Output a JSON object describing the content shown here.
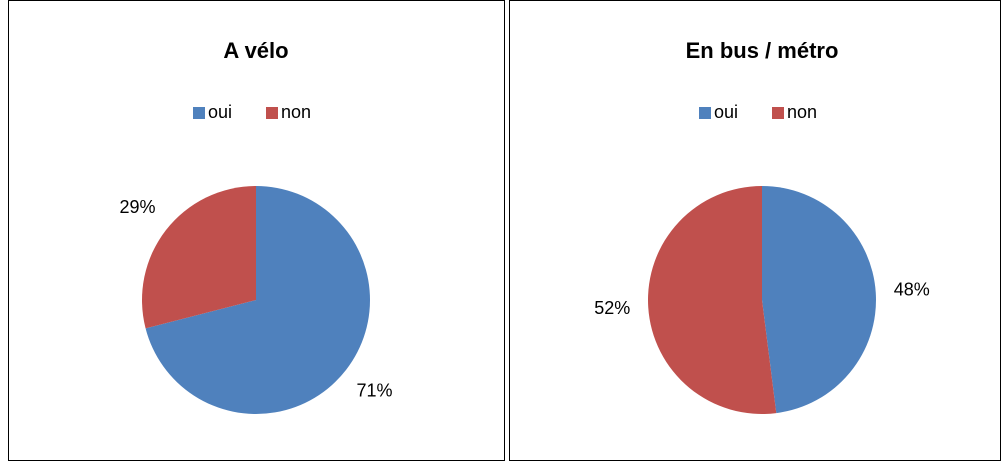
{
  "chart_data": [
    {
      "type": "pie",
      "title": "A vélo",
      "categories": [
        "oui",
        "non"
      ],
      "values": [
        71,
        29
      ],
      "value_labels": [
        "71%",
        "29%"
      ],
      "colors": [
        "#4f81bd",
        "#c0504d"
      ],
      "legend": "top"
    },
    {
      "type": "pie",
      "title": "En bus / métro",
      "categories": [
        "oui",
        "non"
      ],
      "values": [
        48,
        52
      ],
      "value_labels": [
        "48%",
        "52%"
      ],
      "colors": [
        "#4f81bd",
        "#c0504d"
      ],
      "legend": "top"
    }
  ]
}
